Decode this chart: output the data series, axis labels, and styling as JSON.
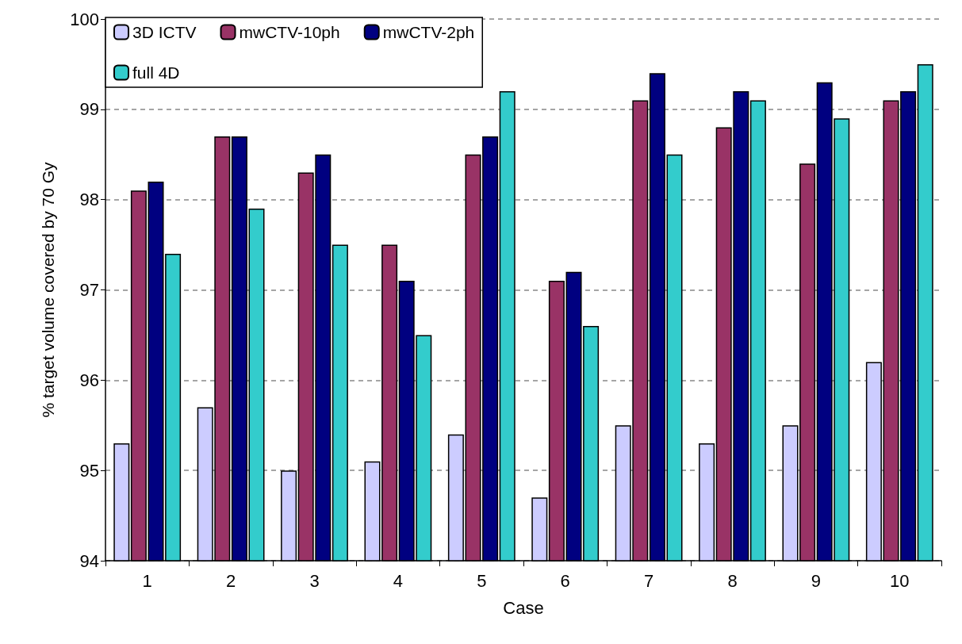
{
  "chart_data": {
    "type": "bar",
    "xlabel": "Case",
    "ylabel": "% target volume covered by 70 Gy",
    "categories": [
      "1",
      "2",
      "3",
      "4",
      "5",
      "6",
      "7",
      "8",
      "9",
      "10"
    ],
    "series": [
      {
        "name": "3D ICTV",
        "color": "#ccccff",
        "values": [
          95.3,
          95.7,
          95.0,
          95.1,
          95.4,
          94.7,
          95.5,
          95.3,
          95.5,
          96.2
        ]
      },
      {
        "name": "mwCTV-10ph",
        "color": "#993366",
        "values": [
          98.1,
          98.7,
          98.3,
          97.5,
          98.5,
          97.1,
          99.1,
          98.8,
          98.4,
          99.1
        ]
      },
      {
        "name": "mwCTV-2ph",
        "color": "#000080",
        "values": [
          98.2,
          98.7,
          98.5,
          97.1,
          98.7,
          97.2,
          99.4,
          99.2,
          99.3,
          99.2
        ]
      },
      {
        "name": "full 4D",
        "color": "#33cccc",
        "values": [
          97.4,
          97.9,
          97.5,
          96.5,
          99.2,
          96.6,
          98.5,
          99.1,
          98.9,
          99.5
        ]
      }
    ],
    "ylim": [
      94,
      100
    ],
    "yticks": [
      94,
      95,
      96,
      97,
      98,
      99,
      100
    ],
    "grid": "y",
    "legend": "top left"
  }
}
